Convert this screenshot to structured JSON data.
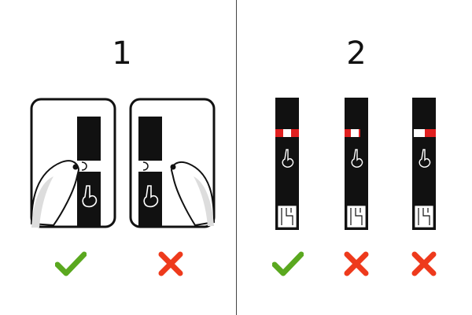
{
  "section_1": {
    "number": "1",
    "panels": [
      {
        "label": "correct",
        "icon": "check-icon"
      },
      {
        "label": "incorrect",
        "icon": "cross-icon"
      }
    ]
  },
  "section_2": {
    "number": "2",
    "strips": [
      {
        "label": "correct",
        "icon": "check-icon"
      },
      {
        "label": "incorrect",
        "icon": "cross-icon"
      },
      {
        "label": "incorrect",
        "icon": "cross-icon"
      }
    ]
  },
  "colors": {
    "check": "#5aa81f",
    "cross": "#ee3a1c",
    "strip": "#111111",
    "blood": "#e02020"
  }
}
